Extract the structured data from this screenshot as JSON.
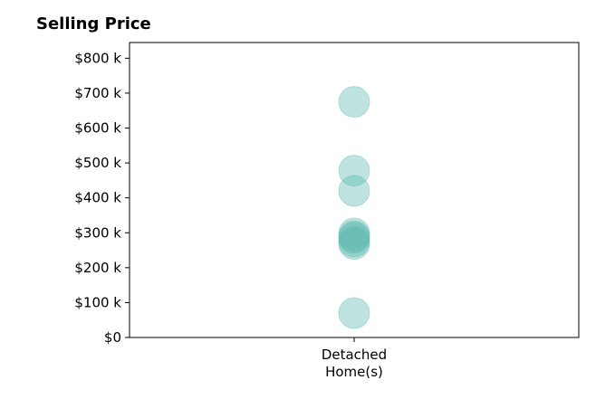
{
  "chart_data": {
    "type": "scatter",
    "title": "Selling Price",
    "categories": [
      "Detached\nHome(s)"
    ],
    "series": [
      {
        "category": "Detached\nHome(s)",
        "values": [
          675000,
          478000,
          420000,
          298000,
          290000,
          285000,
          275000,
          268000,
          70000
        ]
      }
    ],
    "yticks": [
      0,
      100000,
      200000,
      300000,
      400000,
      500000,
      600000,
      700000,
      800000
    ],
    "ytick_labels": [
      "$0",
      "$100 k",
      "$200 k",
      "$300 k",
      "$400 k",
      "$500 k",
      "$600 k",
      "$700 k",
      "$800 k"
    ],
    "ylim": [
      0,
      845000
    ],
    "grid": false,
    "marker_color": "#5fb8b0",
    "marker_opacity": 0.4
  }
}
